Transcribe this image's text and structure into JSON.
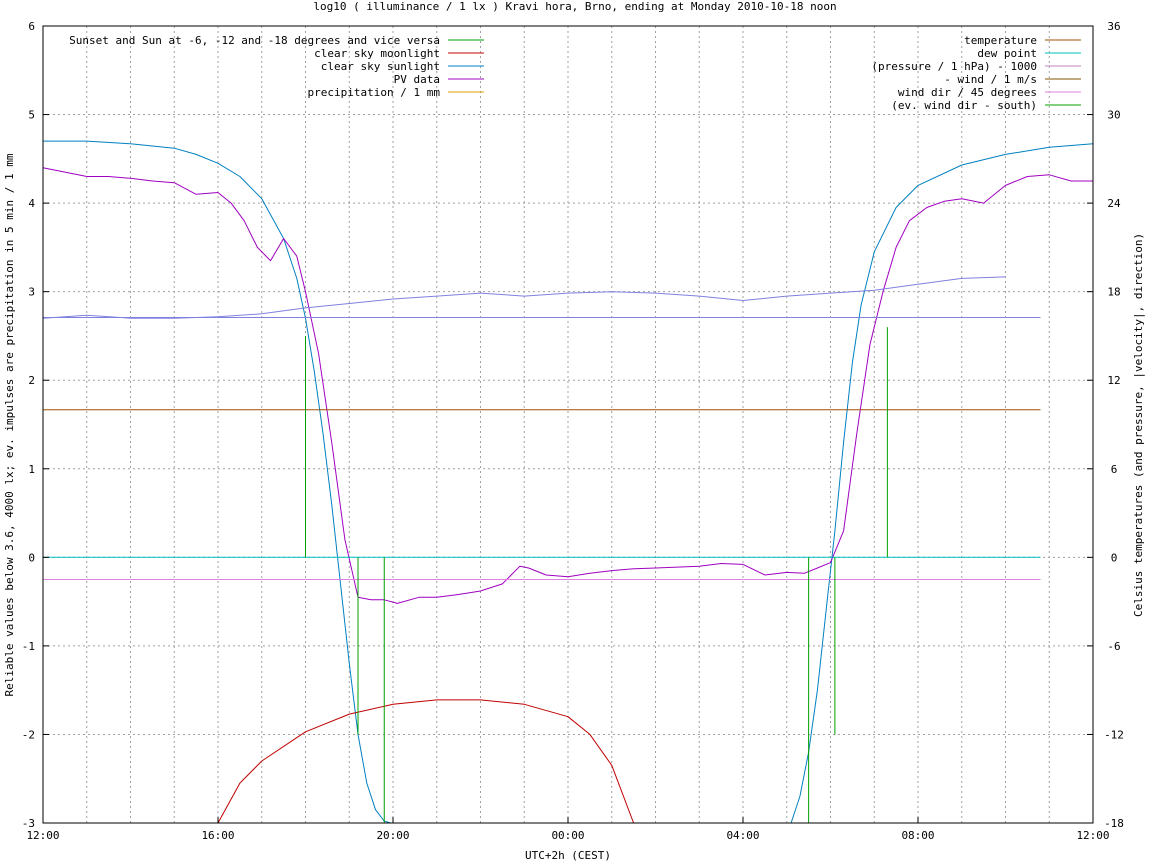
{
  "chart_data": {
    "type": "line",
    "title": "log10 ( illuminance / 1 lx ) Kravi hora, Brno, ending at Monday 2010-10-18 noon",
    "xlabel": "UTC+2h (CEST)",
    "ylabel": "Reliable values below 3.6, 4000 lx; ev. impulses are precipitation in 5 min / 1 mm",
    "y2label": "Celsius temperatures (and pressure, |velocity|, direction)",
    "xlim": [
      0,
      24
    ],
    "ylim": [
      -3,
      6
    ],
    "y2lim": [
      -18,
      36
    ],
    "x_ticks": [
      "12:00",
      "16:00",
      "20:00",
      "00:00",
      "04:00",
      "08:00",
      "12:00"
    ],
    "y_ticks": [
      "-3",
      "-2",
      "-1",
      "0",
      "1",
      "2",
      "3",
      "4",
      "5",
      "6"
    ],
    "y2_ticks": [
      "-18",
      "-12",
      "-6",
      "0",
      "6",
      "12",
      "18",
      "24",
      "30",
      "36"
    ],
    "grid": true,
    "legend_left": [
      {
        "label": "Sunset and Sun at -6, -12 and -18 degrees and vice versa",
        "color": "#00a000"
      },
      {
        "label": "clear sky moonlight",
        "color": "#c00000"
      },
      {
        "label": "clear sky sunlight",
        "color": "#0080c0"
      },
      {
        "label": "PV data",
        "color": "#a000c0"
      },
      {
        "label": "precipitation / 1 mm",
        "color": "#e0a000"
      }
    ],
    "legend_right": [
      {
        "label": "temperature",
        "color": "#a05000"
      },
      {
        "label": "dew point",
        "color": "#00c0c0"
      },
      {
        "label": "(pressure / 1 hPa) - 1000",
        "color": "#c080c0"
      },
      {
        "label": "- wind / 1 m/s",
        "color": "#805000"
      },
      {
        "label": "wind dir / 45 degrees",
        "color": "#e080e0"
      },
      {
        "label": "(ev. wind dir - south)",
        "color": "#00a000"
      }
    ],
    "series": [
      {
        "name": "clear sky sunlight",
        "color": "#0080c0",
        "x": [
          0,
          1,
          2,
          3,
          3.5,
          4,
          4.5,
          5,
          5.5,
          5.8,
          6,
          6.2,
          6.4,
          6.6,
          6.8,
          7,
          7.2,
          7.4,
          7.6,
          7.8,
          7.95,
          17.1,
          17.3,
          17.5,
          17.7,
          17.9,
          18.1,
          18.3,
          18.5,
          18.7,
          19,
          19.5,
          20,
          21,
          22,
          23,
          24
        ],
        "y": [
          4.7,
          4.7,
          4.67,
          4.62,
          4.55,
          4.45,
          4.3,
          4.05,
          3.6,
          3.15,
          2.7,
          2.1,
          1.4,
          0.6,
          -0.3,
          -1.2,
          -2.0,
          -2.55,
          -2.85,
          -2.98,
          -3.0,
          -3.0,
          -2.7,
          -2.2,
          -1.5,
          -0.6,
          0.3,
          1.3,
          2.2,
          2.85,
          3.45,
          3.95,
          4.2,
          4.43,
          4.55,
          4.63,
          4.67
        ]
      },
      {
        "name": "clear sky moonlight",
        "color": "#c00000",
        "x": [
          4.0,
          4.5,
          5.0,
          6.0,
          7.0,
          8.0,
          9.0,
          10.0,
          11.0,
          12.0,
          12.5,
          13.0,
          13.5
        ],
        "y": [
          -3.0,
          -2.55,
          -2.3,
          -1.97,
          -1.77,
          -1.66,
          -1.61,
          -1.61,
          -1.66,
          -1.8,
          -2.0,
          -2.35,
          -3.0
        ]
      },
      {
        "name": "PV data",
        "color": "#a000c0",
        "x": [
          0,
          0.5,
          1,
          1.5,
          2,
          2.5,
          3,
          3.5,
          4,
          4.3,
          4.6,
          4.9,
          5.2,
          5.5,
          5.8,
          6.0,
          6.3,
          6.6,
          6.9,
          7.2,
          7.5,
          7.8,
          8.1,
          8.6,
          9,
          9.5,
          10,
          10.5,
          10.9,
          11.1,
          11.5,
          12,
          12.5,
          13,
          13.5,
          14,
          14.5,
          15,
          15.5,
          16,
          16.5,
          17,
          17.4,
          17.7,
          18,
          18.3,
          18.6,
          18.9,
          19.2,
          19.5,
          19.8,
          20.2,
          20.6,
          21,
          21.5,
          22,
          22.5,
          23,
          23.5,
          24
        ],
        "y": [
          4.4,
          4.35,
          4.3,
          4.3,
          4.28,
          4.25,
          4.23,
          4.1,
          4.12,
          4.0,
          3.8,
          3.5,
          3.35,
          3.6,
          3.4,
          3.0,
          2.3,
          1.3,
          0.2,
          -0.45,
          -0.48,
          -0.48,
          -0.52,
          -0.45,
          -0.45,
          -0.42,
          -0.38,
          -0.3,
          -0.1,
          -0.12,
          -0.2,
          -0.22,
          -0.18,
          -0.15,
          -0.13,
          -0.12,
          -0.11,
          -0.1,
          -0.07,
          -0.08,
          -0.2,
          -0.17,
          -0.18,
          -0.12,
          -0.06,
          0.3,
          1.4,
          2.4,
          3.0,
          3.5,
          3.8,
          3.95,
          4.02,
          4.05,
          4.0,
          4.2,
          4.3,
          4.32,
          4.25,
          4.25
        ]
      },
      {
        "name": "(pressure / 1 hPa) - 1000",
        "axis": "right",
        "color": "#8080e0",
        "x": [
          0,
          1,
          2,
          3,
          4,
          5,
          6,
          7,
          8,
          9,
          10,
          11,
          12,
          13,
          14,
          15,
          16,
          17,
          18,
          19,
          20,
          21,
          22
        ],
        "y": [
          16.2,
          16.4,
          16.2,
          16.2,
          16.3,
          16.5,
          16.9,
          17.2,
          17.5,
          17.7,
          17.9,
          17.7,
          17.9,
          18.0,
          17.9,
          17.7,
          17.4,
          17.7,
          17.9,
          18.1,
          18.5,
          18.9,
          19.0
        ]
      },
      {
        "name": "(pressure / 1 hPa) - 1000 (flat)",
        "axis": "right",
        "color": "#8080e0",
        "x": [
          0,
          22.8
        ],
        "y": [
          16.25,
          16.25
        ]
      },
      {
        "name": "temperature",
        "axis": "right",
        "color": "#a05000",
        "x": [
          0,
          22.8
        ],
        "y": [
          10.0,
          10.0
        ]
      },
      {
        "name": "dew point",
        "axis": "right",
        "color": "#00c0c0",
        "x": [
          0,
          22.8
        ],
        "y": [
          0.0,
          0.0
        ]
      },
      {
        "name": "wind dir / 45 degrees",
        "color": "#e080e0",
        "x": [
          0,
          22.8
        ],
        "y": [
          -0.25,
          -0.25
        ]
      }
    ],
    "green_impulses": [
      {
        "x": 6.0,
        "y": 2.5
      },
      {
        "x": 7.2,
        "y": -2.0
      },
      {
        "x": 7.8,
        "y": -3.0
      },
      {
        "x": 17.5,
        "y": -3.0
      },
      {
        "x": 18.1,
        "y": -2.0
      },
      {
        "x": 19.3,
        "y": 2.6
      }
    ]
  }
}
